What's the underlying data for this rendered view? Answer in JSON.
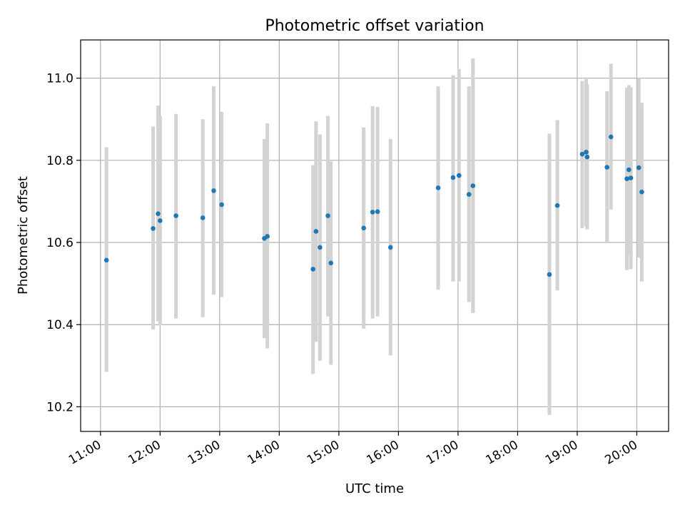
{
  "chart_data": {
    "type": "scatter",
    "title": "Photometric offset variation",
    "xlabel": "UTC time",
    "ylabel": "Photometric offset",
    "x_unit": "UTC hh:mm",
    "xlim": [
      "10:40",
      "20:32"
    ],
    "ylim": [
      10.14,
      11.093
    ],
    "xticks": [
      "11:00",
      "12:00",
      "13:00",
      "14:00",
      "15:00",
      "16:00",
      "17:00",
      "18:00",
      "19:00",
      "20:00"
    ],
    "yticks": [
      10.2,
      10.4,
      10.6,
      10.8,
      11.0
    ],
    "grid": true,
    "point_color": "#1f77b4",
    "errorbar_color": "#d3d3d3",
    "points": [
      {
        "t": "11:06",
        "y": 10.557,
        "lo": 10.285,
        "hi": 10.832
      },
      {
        "t": "11:53",
        "y": 10.634,
        "lo": 10.388,
        "hi": 10.882
      },
      {
        "t": "11:58",
        "y": 10.67,
        "lo": 10.408,
        "hi": 10.933
      },
      {
        "t": "12:00",
        "y": 10.653,
        "lo": 10.398,
        "hi": 10.908
      },
      {
        "t": "12:16",
        "y": 10.665,
        "lo": 10.415,
        "hi": 10.913
      },
      {
        "t": "12:43",
        "y": 10.66,
        "lo": 10.418,
        "hi": 10.9
      },
      {
        "t": "12:54",
        "y": 10.726,
        "lo": 10.473,
        "hi": 10.98
      },
      {
        "t": "13:02",
        "y": 10.692,
        "lo": 10.467,
        "hi": 10.918
      },
      {
        "t": "13:45",
        "y": 10.61,
        "lo": 10.367,
        "hi": 10.852
      },
      {
        "t": "13:48",
        "y": 10.615,
        "lo": 10.342,
        "hi": 10.89
      },
      {
        "t": "14:34",
        "y": 10.535,
        "lo": 10.28,
        "hi": 10.788
      },
      {
        "t": "14:37",
        "y": 10.627,
        "lo": 10.358,
        "hi": 10.895
      },
      {
        "t": "14:41",
        "y": 10.588,
        "lo": 10.312,
        "hi": 10.863
      },
      {
        "t": "14:49",
        "y": 10.665,
        "lo": 10.42,
        "hi": 10.908
      },
      {
        "t": "14:52",
        "y": 10.55,
        "lo": 10.302,
        "hi": 10.797
      },
      {
        "t": "15:25",
        "y": 10.635,
        "lo": 10.39,
        "hi": 10.88
      },
      {
        "t": "15:34",
        "y": 10.674,
        "lo": 10.415,
        "hi": 10.932
      },
      {
        "t": "15:39",
        "y": 10.675,
        "lo": 10.42,
        "hi": 10.93
      },
      {
        "t": "15:52",
        "y": 10.588,
        "lo": 10.325,
        "hi": 10.852
      },
      {
        "t": "16:40",
        "y": 10.733,
        "lo": 10.485,
        "hi": 10.98
      },
      {
        "t": "16:55",
        "y": 10.758,
        "lo": 10.505,
        "hi": 11.007
      },
      {
        "t": "17:01",
        "y": 10.763,
        "lo": 10.505,
        "hi": 11.022
      },
      {
        "t": "17:11",
        "y": 10.717,
        "lo": 10.455,
        "hi": 10.98
      },
      {
        "t": "17:15",
        "y": 10.738,
        "lo": 10.428,
        "hi": 11.048
      },
      {
        "t": "18:32",
        "y": 10.522,
        "lo": 10.18,
        "hi": 10.865
      },
      {
        "t": "18:40",
        "y": 10.69,
        "lo": 10.483,
        "hi": 10.898
      },
      {
        "t": "19:05",
        "y": 10.815,
        "lo": 10.635,
        "hi": 10.993
      },
      {
        "t": "19:09",
        "y": 10.82,
        "lo": 10.64,
        "hi": 10.998
      },
      {
        "t": "19:10",
        "y": 10.808,
        "lo": 10.632,
        "hi": 10.985
      },
      {
        "t": "19:30",
        "y": 10.783,
        "lo": 10.6,
        "hi": 10.968
      },
      {
        "t": "19:34",
        "y": 10.857,
        "lo": 10.68,
        "hi": 11.035
      },
      {
        "t": "19:50",
        "y": 10.755,
        "lo": 10.533,
        "hi": 10.977
      },
      {
        "t": "19:52",
        "y": 10.777,
        "lo": 10.57,
        "hi": 10.983
      },
      {
        "t": "19:54",
        "y": 10.757,
        "lo": 10.535,
        "hi": 10.978
      },
      {
        "t": "20:02",
        "y": 10.782,
        "lo": 10.563,
        "hi": 11.0
      },
      {
        "t": "20:05",
        "y": 10.723,
        "lo": 10.505,
        "hi": 10.94
      }
    ]
  }
}
